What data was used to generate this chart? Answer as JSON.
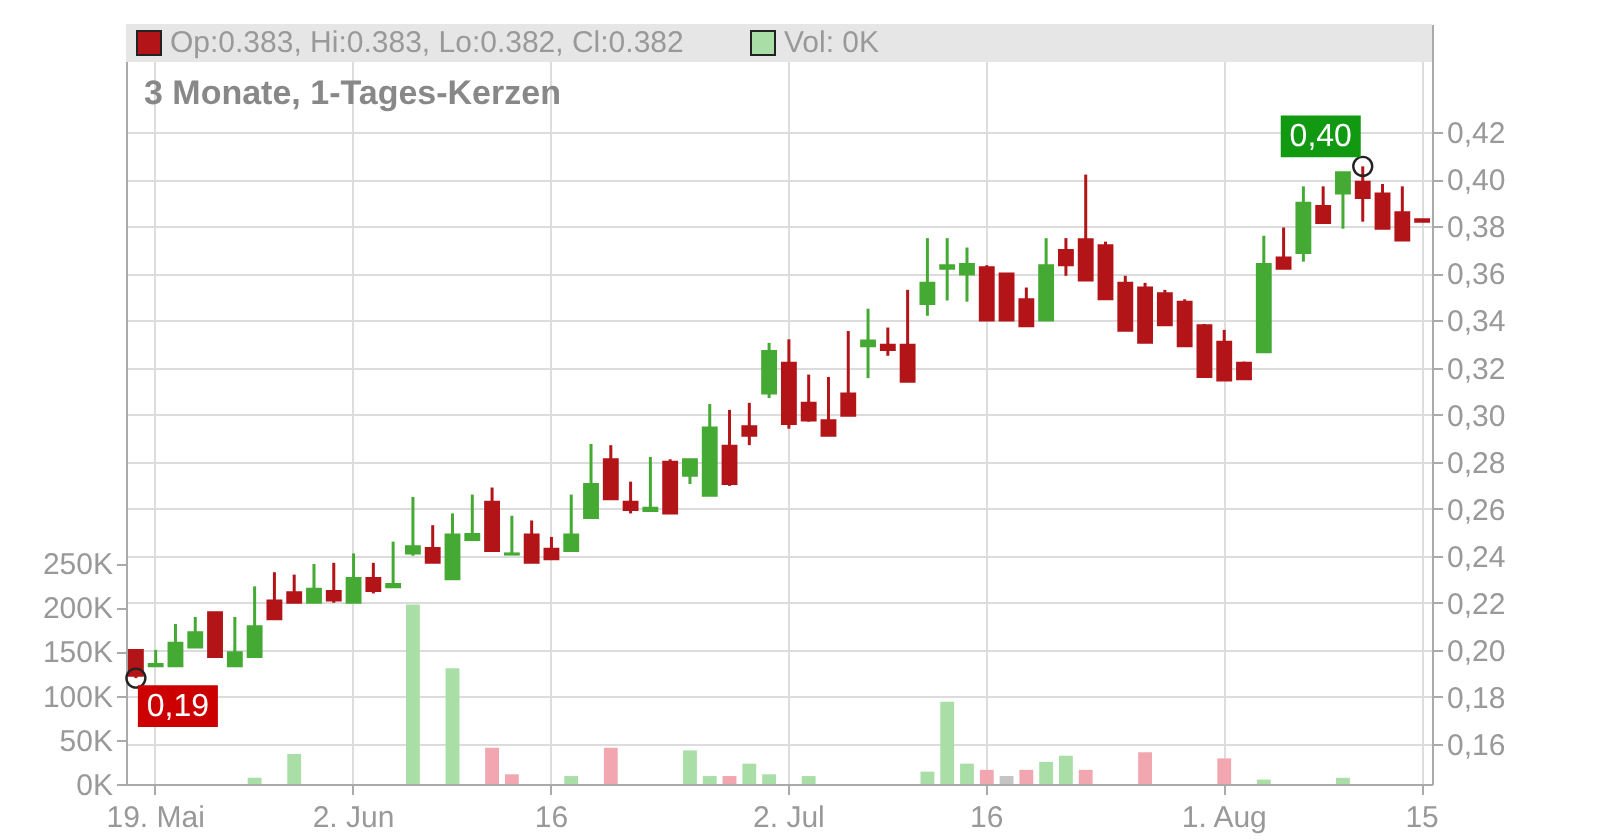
{
  "chart_data": {
    "type": "candlestick",
    "title": "3 Monate, 1-Tages-Kerzen",
    "categories": [
      null,
      "19. Mai",
      null,
      null,
      null,
      null,
      null,
      null,
      null,
      null,
      null,
      "2. Jun",
      null,
      null,
      null,
      null,
      null,
      null,
      null,
      null,
      null,
      "16",
      null,
      null,
      null,
      null,
      null,
      null,
      null,
      null,
      null,
      null,
      null,
      "2. Jul",
      null,
      null,
      null,
      null,
      null,
      null,
      null,
      null,
      null,
      "16",
      null,
      null,
      null,
      null,
      null,
      null,
      null,
      null,
      null,
      null,
      null,
      "1. Aug",
      null,
      null,
      null,
      null,
      null,
      null,
      null,
      null,
      null,
      "15"
    ],
    "ohlc": [
      [
        0.2,
        0.2,
        0.188,
        0.189
      ],
      [
        0.193,
        0.2,
        0.193,
        0.194
      ],
      [
        0.193,
        0.211,
        0.193,
        0.203
      ],
      [
        0.201,
        0.214,
        0.201,
        0.2075
      ],
      [
        0.216,
        0.216,
        0.197,
        0.197
      ],
      [
        0.193,
        0.214,
        0.193,
        0.199
      ],
      [
        0.197,
        0.227,
        0.197,
        0.21
      ],
      [
        0.221,
        0.233,
        0.213,
        0.213
      ],
      [
        0.2245,
        0.232,
        0.22,
        0.22
      ],
      [
        0.22,
        0.2365,
        0.22,
        0.226
      ],
      [
        0.225,
        0.237,
        0.22,
        0.221
      ],
      [
        0.22,
        0.241,
        0.22,
        0.2305
      ],
      [
        0.2305,
        0.237,
        0.224,
        0.225
      ],
      [
        0.2266,
        0.246,
        0.2266,
        0.228
      ],
      [
        0.241,
        0.265,
        0.24,
        0.244
      ],
      [
        0.2433,
        0.253,
        0.237,
        0.237
      ],
      [
        0.23,
        0.258,
        0.23,
        0.249
      ],
      [
        0.2467,
        0.266,
        0.2467,
        0.2493
      ],
      [
        0.263,
        0.269,
        0.242,
        0.242
      ],
      [
        0.2405,
        0.257,
        0.2405,
        0.241
      ],
      [
        0.249,
        0.255,
        0.237,
        0.237
      ],
      [
        0.243,
        0.248,
        0.2385,
        0.2385
      ],
      [
        0.242,
        0.266,
        0.242,
        0.249
      ],
      [
        0.256,
        0.2875,
        0.256,
        0.2705
      ],
      [
        0.281,
        0.287,
        0.264,
        0.264
      ],
      [
        0.263,
        0.2715,
        0.258,
        0.2595
      ],
      [
        0.259,
        0.282,
        0.259,
        0.2604
      ],
      [
        0.28,
        0.281,
        0.258,
        0.258
      ],
      [
        0.274,
        0.281,
        0.2705,
        0.281
      ],
      [
        0.2655,
        0.3045,
        0.2655,
        0.2945
      ],
      [
        0.2868,
        0.302,
        0.2697,
        0.2705
      ],
      [
        0.295,
        0.305,
        0.287,
        0.291
      ],
      [
        0.309,
        0.3305,
        0.307,
        0.327
      ],
      [
        0.322,
        0.332,
        0.294,
        0.296
      ],
      [
        0.305,
        0.317,
        0.297,
        0.2975
      ],
      [
        0.2976,
        0.316,
        0.291,
        0.291
      ],
      [
        0.309,
        0.3355,
        0.2995,
        0.2995
      ],
      [
        0.329,
        0.345,
        0.3155,
        0.3315
      ],
      [
        0.3297,
        0.337,
        0.325,
        0.3275
      ],
      [
        0.3297,
        0.353,
        0.314,
        0.314
      ],
      [
        0.347,
        0.375,
        0.342,
        0.356
      ],
      [
        0.362,
        0.375,
        0.3485,
        0.3635
      ],
      [
        0.3595,
        0.371,
        0.348,
        0.364
      ],
      [
        0.3626,
        0.3635,
        0.34,
        0.34
      ],
      [
        0.36,
        0.36,
        0.34,
        0.34
      ],
      [
        0.349,
        0.354,
        0.3375,
        0.3375
      ],
      [
        0.34,
        0.375,
        0.34,
        0.3635
      ],
      [
        0.37,
        0.375,
        0.359,
        0.3635
      ],
      [
        0.3745,
        0.402,
        0.357,
        0.357
      ],
      [
        0.372,
        0.3735,
        0.349,
        0.349
      ],
      [
        0.356,
        0.359,
        0.3356,
        0.3356
      ],
      [
        0.354,
        0.356,
        0.3305,
        0.3305
      ],
      [
        0.3516,
        0.353,
        0.338,
        0.338
      ],
      [
        0.348,
        0.349,
        0.329,
        0.329
      ],
      [
        0.338,
        0.3385,
        0.316,
        0.316
      ],
      [
        0.331,
        0.336,
        0.3145,
        0.3145
      ],
      [
        0.322,
        0.3225,
        0.315,
        0.315
      ],
      [
        0.3265,
        0.376,
        0.3265,
        0.364
      ],
      [
        0.3668,
        0.3795,
        0.362,
        0.362
      ],
      [
        0.3687,
        0.397,
        0.365,
        0.39
      ],
      [
        0.3887,
        0.397,
        0.3814,
        0.3814
      ],
      [
        0.394,
        0.403,
        0.379,
        0.403
      ],
      [
        0.399,
        0.4055,
        0.382,
        0.392
      ],
      [
        0.394,
        0.398,
        0.379,
        0.379
      ],
      [
        0.386,
        0.397,
        0.374,
        0.374
      ],
      [
        0.383,
        0.383,
        0.382,
        0.382
      ]
    ],
    "colors": [
      "#b21418",
      "#44aa33",
      "#44aa33",
      "#44aa33",
      "#b21418",
      "#44aa33",
      "#44aa33",
      "#b21418",
      "#b21418",
      "#44aa33",
      "#b21418",
      "#44aa33",
      "#b21418",
      "#44aa33",
      "#44aa33",
      "#b21418",
      "#44aa33",
      "#44aa33",
      "#b21418",
      "#44aa33",
      "#b21418",
      "#b21418",
      "#44aa33",
      "#44aa33",
      "#b21418",
      "#b21418",
      "#44aa33",
      "#b21418",
      "#44aa33",
      "#44aa33",
      "#b21418",
      "#b21418",
      "#44aa33",
      "#b21418",
      "#b21418",
      "#b21418",
      "#b21418",
      "#44aa33",
      "#b21418",
      "#b21418",
      "#44aa33",
      "#44aa33",
      "#44aa33",
      "#b21418",
      "#b21418",
      "#b21418",
      "#44aa33",
      "#b21418",
      "#b21418",
      "#b21418",
      "#b21418",
      "#b21418",
      "#b21418",
      "#b21418",
      "#b21418",
      "#b21418",
      "#b21418",
      "#44aa33",
      "#b21418",
      "#44aa33",
      "#b21418",
      "#44aa33",
      "#b21418",
      "#b21418",
      "#b21418",
      "#b21418"
    ],
    "series": [
      {
        "type": "bar",
        "axis": "y2",
        "color": "#a9dfa6",
        "values": [
          null,
          null,
          null,
          null,
          null,
          null,
          7000,
          null,
          34000,
          null,
          null,
          null,
          null,
          null,
          203000,
          null,
          131000,
          null,
          41000,
          11000,
          null,
          null,
          9000,
          null,
          41000,
          null,
          null,
          null,
          38000,
          9000,
          9000,
          23000,
          11000,
          null,
          9000,
          null,
          null,
          null,
          null,
          null,
          14000,
          93000,
          23000,
          16000,
          9000,
          16000,
          25000,
          32000,
          16000,
          null,
          null,
          36000,
          null,
          null,
          null,
          29000,
          null,
          5000,
          null,
          null,
          null,
          7000,
          null,
          null,
          null,
          null
        ],
        "colors": [
          null,
          null,
          null,
          null,
          null,
          null,
          "#a9dfa6",
          null,
          "#a9dfa6",
          null,
          null,
          null,
          null,
          null,
          "#a9dfa6",
          null,
          "#a9dfa6",
          null,
          "#f2a7b0",
          "#f2a7b0",
          null,
          null,
          "#a9dfa6",
          null,
          "#f2a7b0",
          null,
          null,
          null,
          "#a9dfa6",
          "#a9dfa6",
          "#f2a7b0",
          "#a9dfa6",
          "#a9dfa6",
          null,
          "#a9dfa6",
          null,
          null,
          null,
          null,
          null,
          "#a9dfa6",
          "#a9dfa6",
          "#a9dfa6",
          "#f2a7b0",
          "#c4c4c4",
          "#f2a7b0",
          "#a9dfa6",
          "#a9dfa6",
          "#f2a7b0",
          null,
          null,
          "#f2a7b0",
          null,
          null,
          null,
          "#f2a7b0",
          null,
          "#a9dfa6",
          null,
          null,
          null,
          "#a9dfa6",
          null,
          null,
          null,
          null
        ]
      }
    ],
    "ylim": [
      0.143,
      0.466
    ],
    "yticks": [
      {
        "value": 0.16,
        "label": "0,16"
      },
      {
        "value": 0.18,
        "label": "0,18"
      },
      {
        "value": 0.2,
        "label": "0,20"
      },
      {
        "value": 0.22,
        "label": "0,22"
      },
      {
        "value": 0.24,
        "label": "0,24"
      },
      {
        "value": 0.26,
        "label": "0,26"
      },
      {
        "value": 0.28,
        "label": "0,28"
      },
      {
        "value": 0.3,
        "label": "0,30"
      },
      {
        "value": 0.32,
        "label": "0,32"
      },
      {
        "value": 0.34,
        "label": "0,34"
      },
      {
        "value": 0.36,
        "label": "0,36"
      },
      {
        "value": 0.38,
        "label": "0,38"
      },
      {
        "value": 0.4,
        "label": "0,40"
      },
      {
        "value": 0.42,
        "label": "0,42"
      }
    ],
    "y2lim": [
      0,
      860000
    ],
    "y2ticks": [
      {
        "value": 0,
        "label": "0K"
      },
      {
        "value": 50000,
        "label": "50K"
      },
      {
        "value": 100000,
        "label": "100K"
      },
      {
        "value": 150000,
        "label": "150K"
      },
      {
        "value": 200000,
        "label": "200K"
      },
      {
        "value": 250000,
        "label": "250K"
      }
    ],
    "grid": true,
    "annotations": [
      "Op:0.383, Hi:0.383, Lo:0.382, Cl:0.382",
      "Vol: 0K",
      "0,19",
      "0,40"
    ]
  }
}
